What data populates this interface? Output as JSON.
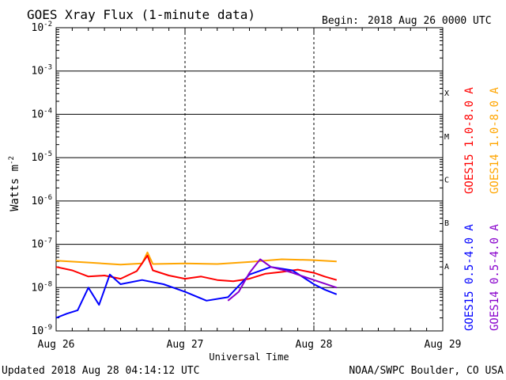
{
  "page": {
    "title": "GOES Xray Flux (1-minute data)",
    "begin_label": "Begin:",
    "begin_value": "2018 Aug 26 0000 UTC",
    "updated": "Updated 2018 Aug 28 04:14:12 UTC",
    "credit": "NOAA/SWPC Boulder, CO USA"
  },
  "chart_data": {
    "type": "line",
    "title": "GOES Xray Flux (1-minute data)",
    "xlabel": "Universal Time",
    "ylabel": "Watts m",
    "ylabel_sup": "-2",
    "yscale": "log",
    "ylim": [
      1e-09,
      0.01
    ],
    "xlim": [
      "2018-08-26 00:00",
      "2018-08-29 00:00"
    ],
    "x_ticks": [
      "Aug 26",
      "Aug 27",
      "Aug 28",
      "Aug 29"
    ],
    "y_ticks": [
      {
        "base": "10",
        "exp": "-2"
      },
      {
        "base": "10",
        "exp": "-3"
      },
      {
        "base": "10",
        "exp": "-4"
      },
      {
        "base": "10",
        "exp": "-5"
      },
      {
        "base": "10",
        "exp": "-6"
      },
      {
        "base": "10",
        "exp": "-7"
      },
      {
        "base": "10",
        "exp": "-8"
      },
      {
        "base": "10",
        "exp": "-9"
      }
    ],
    "flare_classes": [
      "X",
      "M",
      "C",
      "B",
      "A"
    ],
    "grid": true,
    "legend": [
      {
        "label": "GOES15 1.0-8.0 A",
        "color": "#ff0000"
      },
      {
        "label": "GOES14 1.0-8.0 A",
        "color": "#ffa500"
      },
      {
        "label": "GOES15 0.5-4.0 A",
        "color": "#0000ff"
      },
      {
        "label": "GOES14 0.5-4.0 A",
        "color": "#8800cc"
      }
    ],
    "series": [
      {
        "name": "GOES14 1.0-8.0 A",
        "color": "#ffa500",
        "x": [
          "2018-08-26 00:00",
          "2018-08-26 06:00",
          "2018-08-26 12:00",
          "2018-08-26 16:00",
          "2018-08-26 17:00",
          "2018-08-26 18:00",
          "2018-08-27 00:00",
          "2018-08-27 06:00",
          "2018-08-27 12:00",
          "2018-08-27 18:00",
          "2018-08-28 00:00",
          "2018-08-28 04:14"
        ],
        "y": [
          4.2e-08,
          3.8e-08,
          3.4e-08,
          3.6e-08,
          6.5e-08,
          3.5e-08,
          3.6e-08,
          3.5e-08,
          3.9e-08,
          4.5e-08,
          4.3e-08,
          4e-08
        ]
      },
      {
        "name": "GOES15 1.0-8.0 A",
        "color": "#ff0000",
        "x": [
          "2018-08-26 00:00",
          "2018-08-26 03:00",
          "2018-08-26 06:00",
          "2018-08-26 09:00",
          "2018-08-26 12:00",
          "2018-08-26 15:00",
          "2018-08-26 17:00",
          "2018-08-26 18:00",
          "2018-08-26 21:00",
          "2018-08-27 00:00",
          "2018-08-27 03:00",
          "2018-08-27 06:00",
          "2018-08-27 09:00",
          "2018-08-27 12:00",
          "2018-08-27 15:00",
          "2018-08-27 18:00",
          "2018-08-27 21:00",
          "2018-08-28 00:00",
          "2018-08-28 02:00",
          "2018-08-28 04:14"
        ],
        "y": [
          3e-08,
          2.5e-08,
          1.8e-08,
          1.9e-08,
          1.6e-08,
          2.4e-08,
          5.5e-08,
          2.5e-08,
          1.9e-08,
          1.6e-08,
          1.8e-08,
          1.5e-08,
          1.4e-08,
          1.6e-08,
          2.1e-08,
          2.3e-08,
          2.6e-08,
          2.2e-08,
          1.8e-08,
          1.5e-08
        ]
      },
      {
        "name": "GOES15 0.5-4.0 A",
        "color": "#0000ff",
        "x": [
          "2018-08-26 00:00",
          "2018-08-26 02:00",
          "2018-08-26 04:00",
          "2018-08-26 06:00",
          "2018-08-26 08:00",
          "2018-08-26 10:00",
          "2018-08-26 12:00",
          "2018-08-26 16:00",
          "2018-08-26 20:00",
          "2018-08-27 00:00",
          "2018-08-27 04:00",
          "2018-08-27 08:00",
          "2018-08-27 12:00",
          "2018-08-27 16:00",
          "2018-08-27 20:00",
          "2018-08-28 00:00",
          "2018-08-28 02:00",
          "2018-08-28 04:14"
        ],
        "y": [
          2e-09,
          2.5e-09,
          3e-09,
          1e-08,
          4e-09,
          2e-08,
          1.2e-08,
          1.5e-08,
          1.2e-08,
          8e-09,
          5e-09,
          6e-09,
          2e-08,
          3e-08,
          2.5e-08,
          1.2e-08,
          9e-09,
          7e-09
        ]
      },
      {
        "name": "GOES14 0.5-4.0 A",
        "color": "#8800cc",
        "x": [
          "2018-08-27 08:00",
          "2018-08-27 10:00",
          "2018-08-27 12:00",
          "2018-08-27 14:00",
          "2018-08-27 16:00",
          "2018-08-27 18:00",
          "2018-08-27 20:00",
          "2018-08-28 00:00",
          "2018-08-28 04:14"
        ],
        "y": [
          5e-09,
          8e-09,
          2.2e-08,
          4.5e-08,
          3e-08,
          2.6e-08,
          2.2e-08,
          1.5e-08,
          1e-08
        ]
      }
    ]
  }
}
